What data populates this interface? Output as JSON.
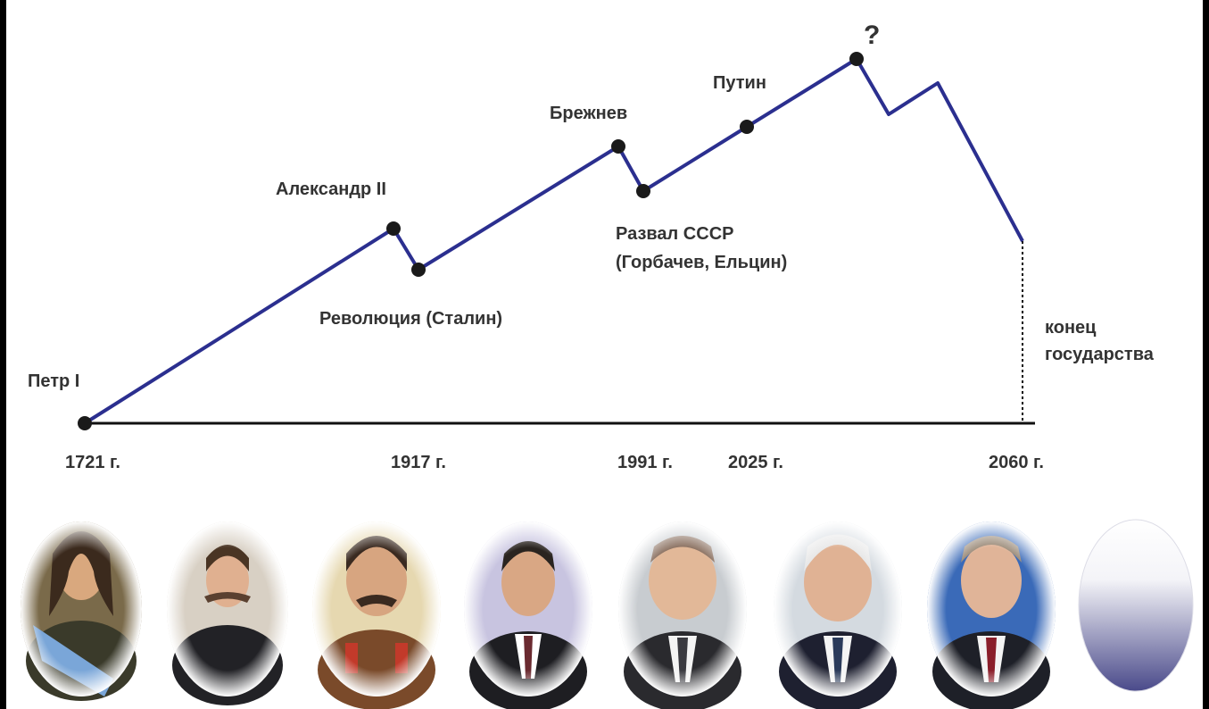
{
  "events": [
    {
      "label": "Петр I"
    },
    {
      "label": "Александр II"
    },
    {
      "label": "Революция (Сталин)"
    },
    {
      "label": "Брежнев"
    },
    {
      "label": "Развал СССР",
      "label2": "(Горбачев, Ельцин)"
    },
    {
      "label": "Путин"
    },
    {
      "label": "?"
    }
  ],
  "years": [
    "1721 г.",
    "1917 г.",
    "1991 г.",
    "2025 г.",
    "2060 г."
  ],
  "end_label": [
    "конец",
    "государства"
  ],
  "portraits": [
    {
      "name": "Петр I"
    },
    {
      "name": "Александр II"
    },
    {
      "name": "Сталин"
    },
    {
      "name": "Брежнев"
    },
    {
      "name": "Горбачев"
    },
    {
      "name": "Ельцин"
    },
    {
      "name": "Путин"
    },
    {
      "name": ""
    }
  ],
  "colors": {
    "line": "#2b2f8f",
    "axis": "#111111",
    "dot": "#1a1a1a",
    "text": "#333333",
    "blank_oval_top": "#ffffff",
    "blank_oval_bottom": "#4a4a8a"
  }
}
